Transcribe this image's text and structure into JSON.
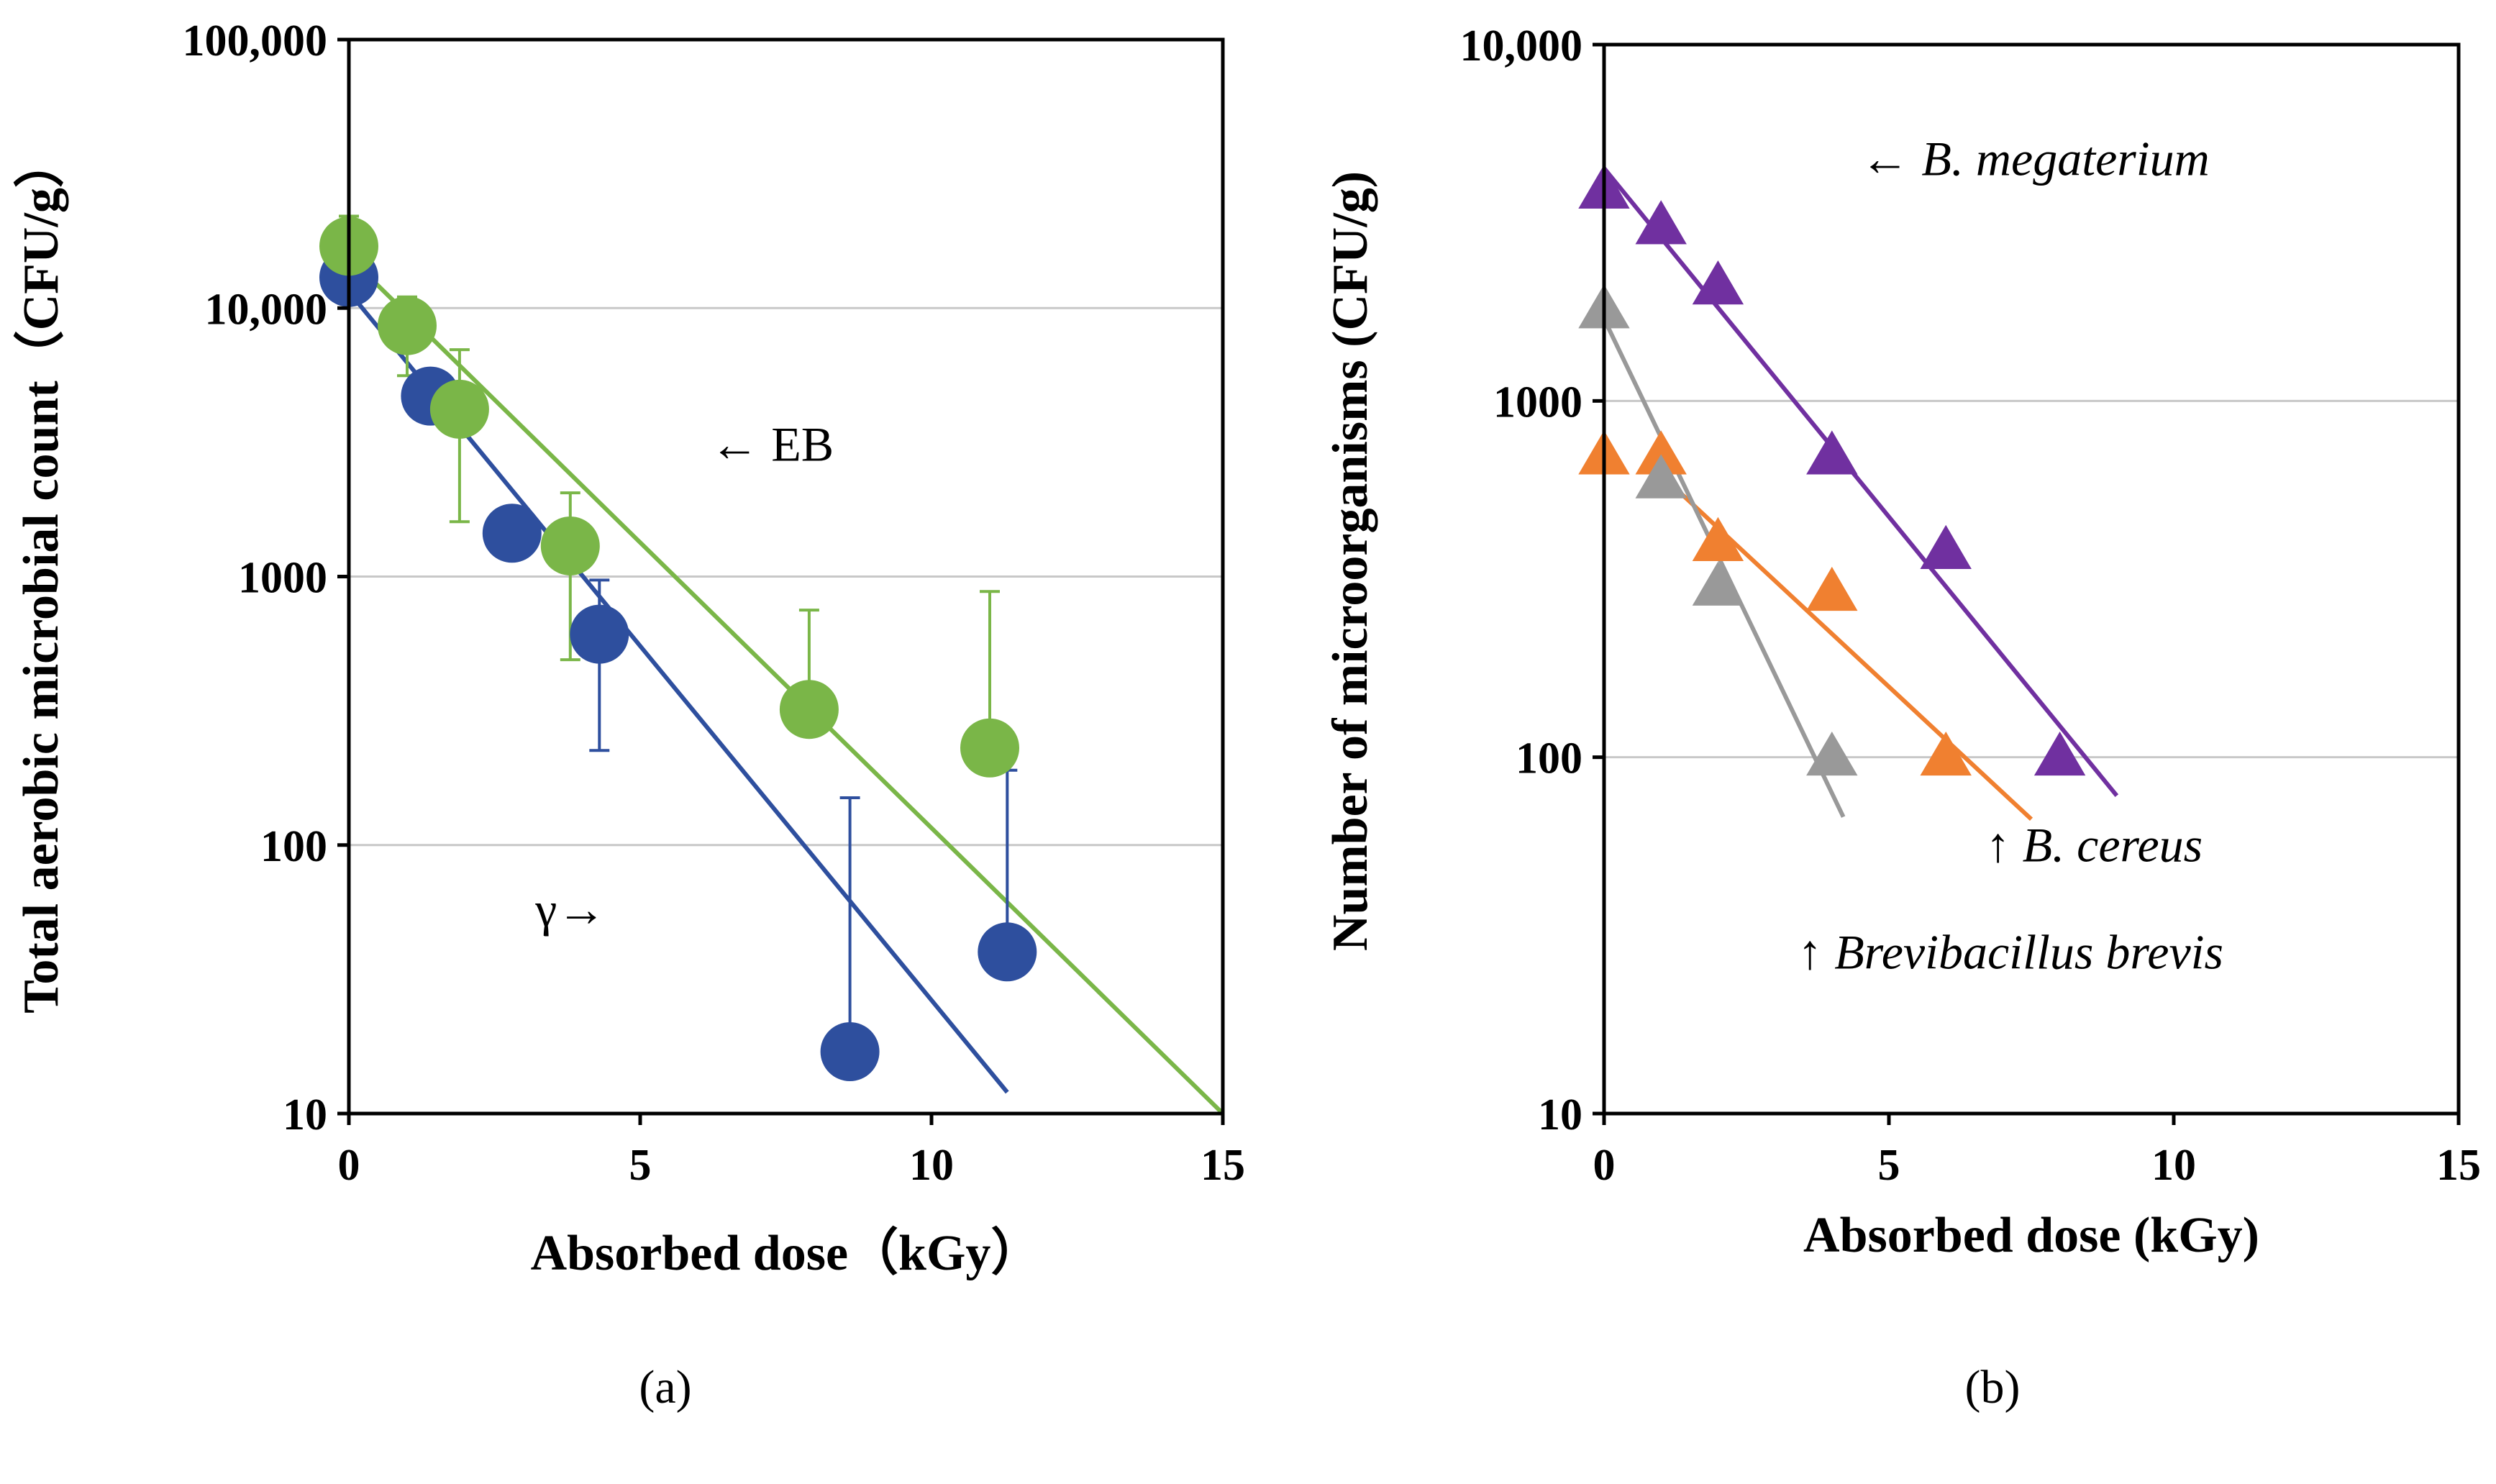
{
  "chart_data": [
    {
      "type": "scatter",
      "panel_label": "(a)",
      "xlabel": "Absorbed dose（kGy）",
      "ylabel": "Total aerobic microbial count（CFU/g）",
      "xlim": [
        0,
        15
      ],
      "ylim": [
        10,
        100000
      ],
      "y_scale": "log",
      "x_ticks": [
        "0",
        "5",
        "10",
        "15"
      ],
      "y_ticks": [
        {
          "value": 10,
          "label": "10"
        },
        {
          "value": 100,
          "label": "100"
        },
        {
          "value": 1000,
          "label": "1000"
        },
        {
          "value": 10000,
          "label": "10,000"
        },
        {
          "value": 100000,
          "label": "100,000"
        }
      ],
      "grid": "horizontal",
      "series": [
        {
          "color": "#2e4f9e",
          "marker": "circle",
          "x": [
            0,
            1.4,
            2.8,
            4.3,
            8.6,
            11.3
          ],
          "y": [
            13000,
            4700,
            1450,
            610,
            17,
            40
          ],
          "error_upper": [
            null,
            null,
            null,
            970,
            150,
            190
          ],
          "error_lower": [
            null,
            null,
            null,
            225,
            null,
            null
          ],
          "fit": {
            "x": [
              0,
              11.3
            ],
            "y": [
              11500,
              12
            ]
          }
        },
        {
          "color": "#7ab648",
          "marker": "circle",
          "x": [
            0,
            1.0,
            1.9,
            3.8,
            7.9,
            11.0
          ],
          "y": [
            17000,
            8600,
            4200,
            1300,
            320,
            230
          ],
          "error_upper": [
            22000,
            11000,
            7000,
            2050,
            750,
            880
          ],
          "error_lower": [
            null,
            5600,
            1600,
            490,
            null,
            null
          ],
          "fit": {
            "x": [
              0,
              15
            ],
            "y": [
              15500,
              10
            ]
          }
        }
      ],
      "annotations": [
        {
          "text": "← EB",
          "x": 6.2,
          "y": 2700
        },
        {
          "text": "γ→",
          "x": 3.2,
          "y": 50
        }
      ]
    },
    {
      "type": "scatter",
      "panel_label": "(b)",
      "xlabel": "Absorbed dose (kGy)",
      "ylabel": "Number of microorganisms (CFU/g)",
      "xlim": [
        0,
        15
      ],
      "ylim": [
        10,
        10000
      ],
      "y_scale": "log",
      "x_ticks": [
        "0",
        "5",
        "10",
        "15"
      ],
      "y_ticks": [
        {
          "value": 10,
          "label": "10"
        },
        {
          "value": 100,
          "label": "100"
        },
        {
          "value": 1000,
          "label": "1000"
        },
        {
          "value": 10000,
          "label": "10,000"
        }
      ],
      "grid": "horizontal",
      "series": [
        {
          "color": "#7030a0",
          "marker": "triangle",
          "x": [
            0,
            1,
            2,
            4,
            6,
            8
          ],
          "y": [
            3900,
            3100,
            2100,
            700,
            380,
            100
          ],
          "fit": {
            "x": [
              0,
              9
            ],
            "y": [
              4500,
              78
            ]
          }
        },
        {
          "color": "#f08030",
          "marker": "triangle",
          "x": [
            0,
            1,
            2,
            4,
            6
          ],
          "y": [
            700,
            700,
            400,
            290,
            100
          ],
          "fit": {
            "x": [
              1,
              7.5
            ],
            "y": [
              620,
              67
            ]
          }
        },
        {
          "color": "#999999",
          "marker": "triangle",
          "x": [
            0,
            1,
            2,
            4
          ],
          "y": [
            1800,
            600,
            300,
            100
          ],
          "fit": {
            "x": [
              0,
              4.2
            ],
            "y": [
              1700,
              68
            ]
          }
        }
      ],
      "annotations": [
        {
          "text": "← ",
          "italic": "B. megaterium",
          "x": 4.5,
          "y": 4300
        },
        {
          "text": "↑ ",
          "italic": "B. cereus",
          "x": 6.7,
          "y": 51
        },
        {
          "text": "↑ ",
          "italic": "Brevibacillus brevis",
          "x": 3.4,
          "y": 25.5
        }
      ]
    }
  ]
}
